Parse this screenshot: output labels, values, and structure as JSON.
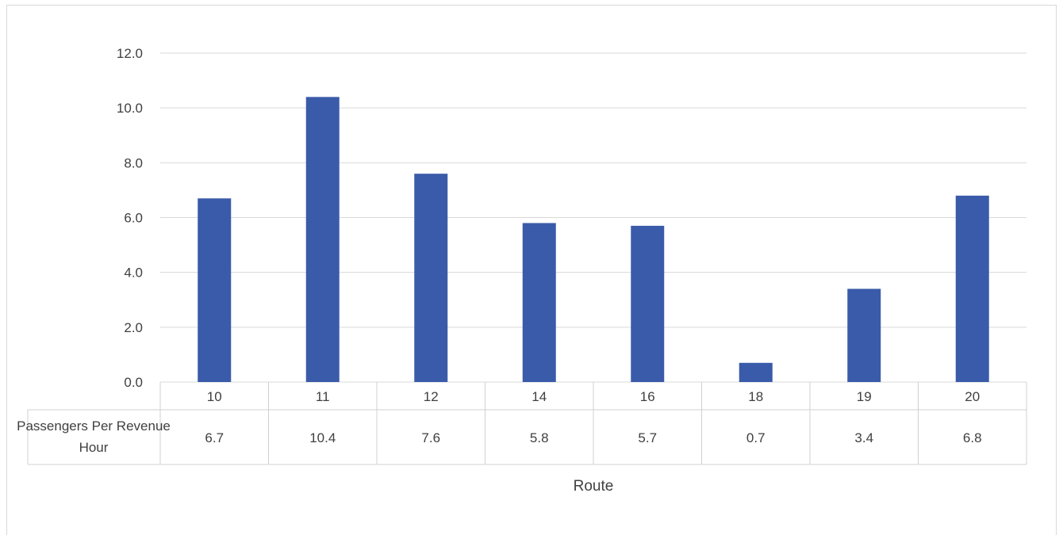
{
  "chart_data": {
    "type": "bar",
    "title": "",
    "xlabel": "Route",
    "ylabel": "",
    "categories": [
      "10",
      "11",
      "12",
      "14",
      "16",
      "18",
      "19",
      "20"
    ],
    "series": [
      {
        "name": "Passengers Per Revenue Hour",
        "values": [
          6.7,
          10.4,
          7.6,
          5.8,
          5.7,
          0.7,
          3.4,
          6.8
        ],
        "value_labels": [
          "6.7",
          "10.4",
          "7.6",
          "5.8",
          "5.7",
          "0.7",
          "3.4",
          "6.8"
        ],
        "color": "#3a5ba9"
      }
    ],
    "yticks": [
      "0.0",
      "2.0",
      "4.0",
      "6.0",
      "8.0",
      "10.0",
      "12.0"
    ],
    "ylim": [
      0,
      12
    ],
    "grid": true,
    "legend": "data table below chart"
  }
}
